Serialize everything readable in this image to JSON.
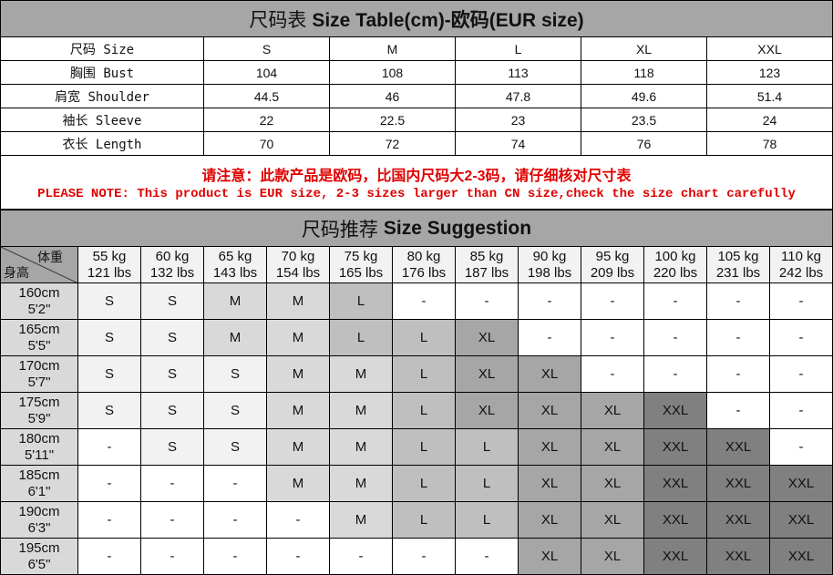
{
  "size_table": {
    "title_cn": "尺码表",
    "title_en": "Size Table(cm)-欧码(EUR size)",
    "header": {
      "label": "尺码 Size",
      "values": [
        "S",
        "M",
        "L",
        "XL",
        "XXL"
      ]
    },
    "rows": [
      {
        "label": "胸围 Bust",
        "values": [
          "104",
          "108",
          "113",
          "118",
          "123"
        ]
      },
      {
        "label": "肩宽 Shoulder",
        "values": [
          "44.5",
          "46",
          "47.8",
          "49.6",
          "51.4"
        ]
      },
      {
        "label": "袖长 Sleeve",
        "values": [
          "22",
          "22.5",
          "23",
          "23.5",
          "24"
        ]
      },
      {
        "label": "衣长 Length",
        "values": [
          "70",
          "72",
          "74",
          "76",
          "78"
        ]
      }
    ]
  },
  "note": {
    "cn": "请注意：此款产品是欧码，比国内尺码大2-3码，请仔细核对尺寸表",
    "en": "PLEASE NOTE: This product is EUR size, 2-3 sizes larger than CN size,check the size chart carefully"
  },
  "suggestion": {
    "title_cn": "尺码推荐",
    "title_en": "Size Suggestion",
    "corner_weight": "体重",
    "corner_height": "身高",
    "weights": [
      [
        "55 kg",
        "121 lbs"
      ],
      [
        "60 kg",
        "132 lbs"
      ],
      [
        "65 kg",
        "143 lbs"
      ],
      [
        "70 kg",
        "154 lbs"
      ],
      [
        "75 kg",
        "165 lbs"
      ],
      [
        "80 kg",
        "176 lbs"
      ],
      [
        "85 kg",
        "187 lbs"
      ],
      [
        "90 kg",
        "198 lbs"
      ],
      [
        "95 kg",
        "209 lbs"
      ],
      [
        "100 kg",
        "220 lbs"
      ],
      [
        "105 kg",
        "231 lbs"
      ],
      [
        "110 kg",
        "242 lbs"
      ]
    ],
    "rows": [
      {
        "cm": "160cm",
        "ft": "5'2\"",
        "sizes": [
          "S",
          "S",
          "M",
          "M",
          "L",
          "-",
          "-",
          "-",
          "-",
          "-",
          "-",
          "-"
        ]
      },
      {
        "cm": "165cm",
        "ft": "5'5\"",
        "sizes": [
          "S",
          "S",
          "M",
          "M",
          "L",
          "L",
          "XL",
          "-",
          "-",
          "-",
          "-",
          "-"
        ]
      },
      {
        "cm": "170cm",
        "ft": "5'7\"",
        "sizes": [
          "S",
          "S",
          "S",
          "M",
          "M",
          "L",
          "XL",
          "XL",
          "-",
          "-",
          "-",
          "-"
        ]
      },
      {
        "cm": "175cm",
        "ft": "5'9\"",
        "sizes": [
          "S",
          "S",
          "S",
          "M",
          "M",
          "L",
          "XL",
          "XL",
          "XL",
          "XXL",
          "-",
          "-"
        ]
      },
      {
        "cm": "180cm",
        "ft": "5'11\"",
        "sizes": [
          "-",
          "S",
          "S",
          "M",
          "M",
          "L",
          "L",
          "XL",
          "XL",
          "XXL",
          "XXL",
          "-"
        ]
      },
      {
        "cm": "185cm",
        "ft": "6'1\"",
        "sizes": [
          "-",
          "-",
          "-",
          "M",
          "M",
          "L",
          "L",
          "XL",
          "XL",
          "XXL",
          "XXL",
          "XXL"
        ]
      },
      {
        "cm": "190cm",
        "ft": "6'3\"",
        "sizes": [
          "-",
          "-",
          "-",
          "-",
          "M",
          "L",
          "L",
          "XL",
          "XL",
          "XXL",
          "XXL",
          "XXL"
        ]
      },
      {
        "cm": "195cm",
        "ft": "6'5\"",
        "sizes": [
          "-",
          "-",
          "-",
          "-",
          "-",
          "-",
          "-",
          "XL",
          "XL",
          "XXL",
          "XXL",
          "XXL"
        ]
      }
    ]
  },
  "colors": {
    "S": "#f2f2f2",
    "M": "#d9d9d9",
    "L": "#bfbfbf",
    "XL": "#a6a6a6",
    "XXL": "#808080",
    "-": "#ffffff",
    "header": "#a6a6a6",
    "note": "#e00000"
  }
}
